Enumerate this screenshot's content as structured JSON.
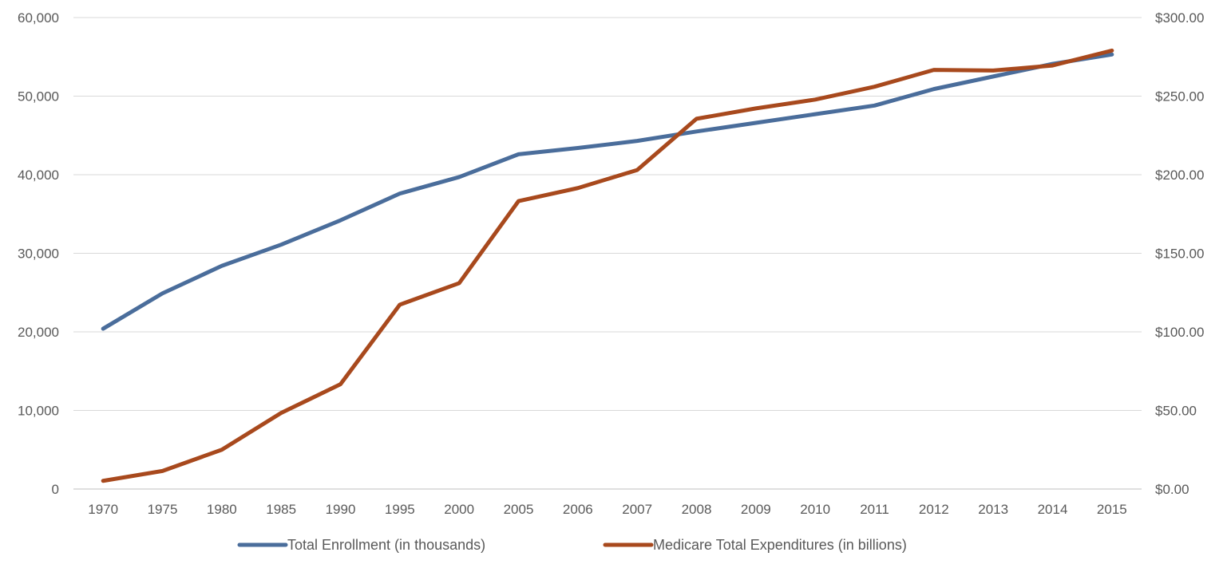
{
  "chart_data": {
    "type": "line",
    "title": "",
    "categories": [
      "1970",
      "1975",
      "1980",
      "1985",
      "1990",
      "1995",
      "2000",
      "2005",
      "2006",
      "2007",
      "2008",
      "2009",
      "2010",
      "2011",
      "2012",
      "2013",
      "2014",
      "2015"
    ],
    "y_left": {
      "min": 0,
      "max": 60000,
      "step": 10000,
      "tick_labels": [
        "0",
        "10,000",
        "20,000",
        "30,000",
        "40,000",
        "50,000",
        "60,000"
      ]
    },
    "y_right": {
      "min": 0,
      "max": 300,
      "step": 50,
      "tick_labels": [
        "$0.00",
        "$50.00",
        "$100.00",
        "$150.00",
        "$200.00",
        "$250.00",
        "$300.00"
      ]
    },
    "grid": true,
    "legend_position": "bottom",
    "series": [
      {
        "name": "Total Enrollment (in thousands)",
        "axis": "left",
        "color": "#4A6D9B",
        "values": [
          20400,
          24900,
          28400,
          31100,
          34200,
          37600,
          39700,
          42600,
          43400,
          44300,
          45500,
          46600,
          47700,
          48800,
          50900,
          52500,
          54100,
          55300
        ]
      },
      {
        "name": "Medicare Total Expenditures (in billions)",
        "axis": "right",
        "color": "#A8491D",
        "values": [
          5.2,
          11.5,
          25.0,
          48.4,
          66.7,
          117.3,
          131.0,
          183.2,
          191.5,
          203.0,
          235.6,
          242.2,
          247.8,
          256.0,
          266.7,
          266.3,
          269.5,
          279.0
        ]
      }
    ]
  }
}
